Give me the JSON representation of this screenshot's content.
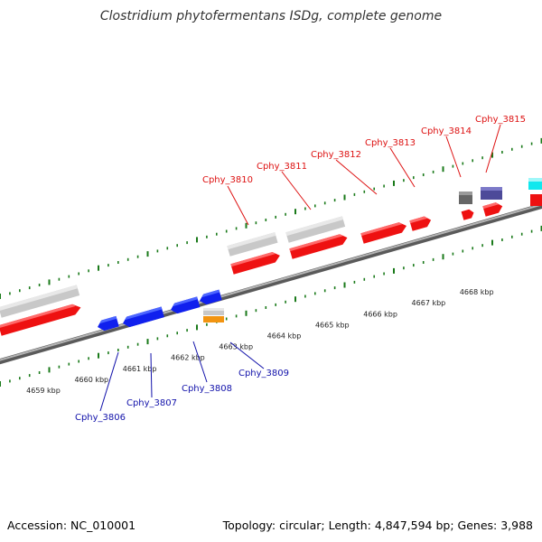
{
  "title": "Clostridium phytofermentans ISDg, complete genome",
  "footer": {
    "accession": "Accession: NC_010001",
    "stats": "Topology: circular; Length: 4,847,594 bp; Genes: 3,988"
  },
  "scale_labels": [
    "4659 kbp",
    "4660 kbp",
    "4661 kbp",
    "4662 kbp",
    "4663 kbp",
    "4664 kbp",
    "4665 kbp",
    "4666 kbp",
    "4667 kbp",
    "4668 kbp"
  ],
  "upper_gene_labels": [
    "Cphy_3810",
    "Cphy_3811",
    "Cphy_3812",
    "Cphy_3813",
    "Cphy_3814",
    "Cphy_3815"
  ],
  "lower_gene_labels": [
    "Cphy_3806",
    "Cphy_3807",
    "Cphy_3808",
    "Cphy_3809"
  ],
  "colors": {
    "backbone": "#8c8c8c",
    "cds": "#ee1111",
    "gene_gray": "#c8c8c8",
    "reverse_gene": "#1020ee",
    "tick": "#1a7a1a",
    "upper_label": "#dd1111",
    "lower_label": "#1111aa",
    "orange_feature": "#f29411",
    "purple_feature": "#4d4a99",
    "cyan_feature": "#11e8ee"
  }
}
